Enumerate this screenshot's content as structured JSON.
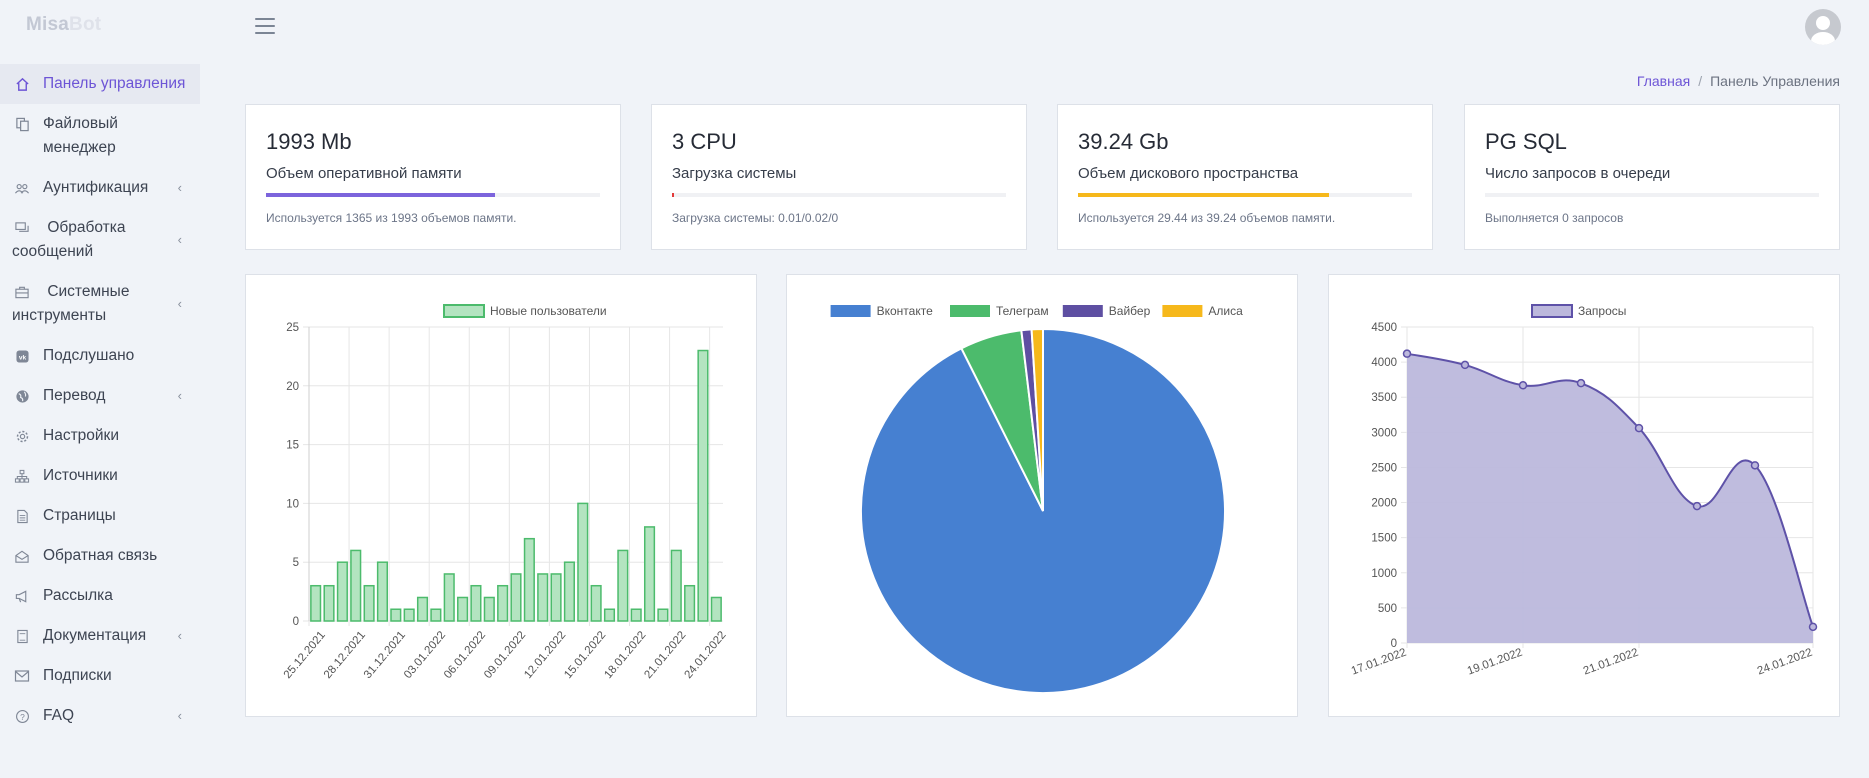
{
  "brand": {
    "part1": "Misa",
    "part2": "Bot"
  },
  "sidebar": {
    "items": [
      {
        "label": "Панель управления",
        "icon": "home-icon"
      },
      {
        "label": "Файловый менеджер",
        "icon": "files-icon"
      },
      {
        "label": "Аунтификация",
        "icon": "users-icon"
      },
      {
        "label": "Обработка сообщений",
        "icon": "messages-icon"
      },
      {
        "label": "Системные инструменты",
        "icon": "toolbox-icon"
      },
      {
        "label": "Подслушано",
        "icon": "vk-icon"
      },
      {
        "label": "Перевод",
        "icon": "globe-icon"
      },
      {
        "label": "Настройки",
        "icon": "gear-icon"
      },
      {
        "label": "Источники",
        "icon": "sitemap-icon"
      },
      {
        "label": "Страницы",
        "icon": "page-icon"
      },
      {
        "label": "Обратная связь",
        "icon": "feedback-icon"
      },
      {
        "label": "Рассылка",
        "icon": "megaphone-icon"
      },
      {
        "label": "Документация",
        "icon": "book-icon"
      },
      {
        "label": "Подписки",
        "icon": "mail-icon"
      },
      {
        "label": "FAQ",
        "icon": "question-icon"
      }
    ]
  },
  "breadcrumb": {
    "home": "Главная",
    "separator": "/",
    "current": "Панель Управления"
  },
  "stats": [
    {
      "value": "1993 Mb",
      "label": "Объем оперативной памяти",
      "progress": 0.685,
      "color": "#7c64dc",
      "note": "Используется 1365 из 1993 объемов памяти."
    },
    {
      "value": "3 CPU",
      "label": "Загрузка системы",
      "progress": 0.005,
      "color": "#e23b3b",
      "note": "Загрузка системы: 0.01/0.02/0"
    },
    {
      "value": "39.24 Gb",
      "label": "Объем дискового пространства",
      "progress": 0.75,
      "color": "#f6b81b",
      "note": "Используется 29.44 из 39.24 объемов памяти."
    },
    {
      "value": "PG SQL",
      "label": "Число запросов в очереди",
      "progress": 0,
      "color": "#9aa0ab",
      "note": "Выполняется 0 запросов"
    }
  ],
  "chart_data": [
    {
      "type": "bar",
      "legend": [
        "Новые пользователи"
      ],
      "series": [
        {
          "name": "Новые пользователи",
          "values": [
            3,
            3,
            5,
            6,
            3,
            5,
            1,
            1,
            2,
            1,
            4,
            2,
            3,
            2,
            3,
            4,
            7,
            4,
            4,
            5,
            10,
            3,
            1,
            6,
            1,
            8,
            1,
            6,
            3,
            23,
            2
          ],
          "color": "#4cbb6c",
          "fill": "#b3e4c0"
        }
      ],
      "x_tick_labels": [
        "25.12.2021",
        "28.12.2021",
        "31.12.2021",
        "03.01.2022",
        "06.01.2022",
        "09.01.2022",
        "12.01.2022",
        "15.01.2022",
        "18.01.2022",
        "21.01.2022",
        "24.01.2022"
      ],
      "ylim": [
        0,
        25
      ],
      "yticks": [
        0,
        5,
        10,
        15,
        20,
        25
      ],
      "grid": true,
      "legend_position": "top"
    },
    {
      "type": "pie",
      "legend": [
        "Вконтакте",
        "Телеграм",
        "Вайбер",
        "Алиса"
      ],
      "values": [
        92.6,
        5.5,
        0.9,
        1.0
      ],
      "colors": [
        "#4680d1",
        "#4cbb6c",
        "#5e4fa2",
        "#f6b81b"
      ],
      "legend_position": "top"
    },
    {
      "type": "area",
      "legend": [
        "Запросы"
      ],
      "series": [
        {
          "name": "Запросы",
          "values": [
            4120,
            3960,
            3670,
            3700,
            3060,
            1950,
            2530,
            230
          ],
          "color": "#5e52a8",
          "fill": "#bcb8dc"
        }
      ],
      "x_tick_labels": [
        "17.01.2022",
        "19.01.2022",
        "21.01.2022",
        "24.01.2022"
      ],
      "ylim": [
        0,
        4500
      ],
      "yticks": [
        0,
        500,
        1000,
        1500,
        2000,
        2500,
        3000,
        3500,
        4000,
        4500
      ],
      "grid": true,
      "legend_position": "top"
    }
  ]
}
